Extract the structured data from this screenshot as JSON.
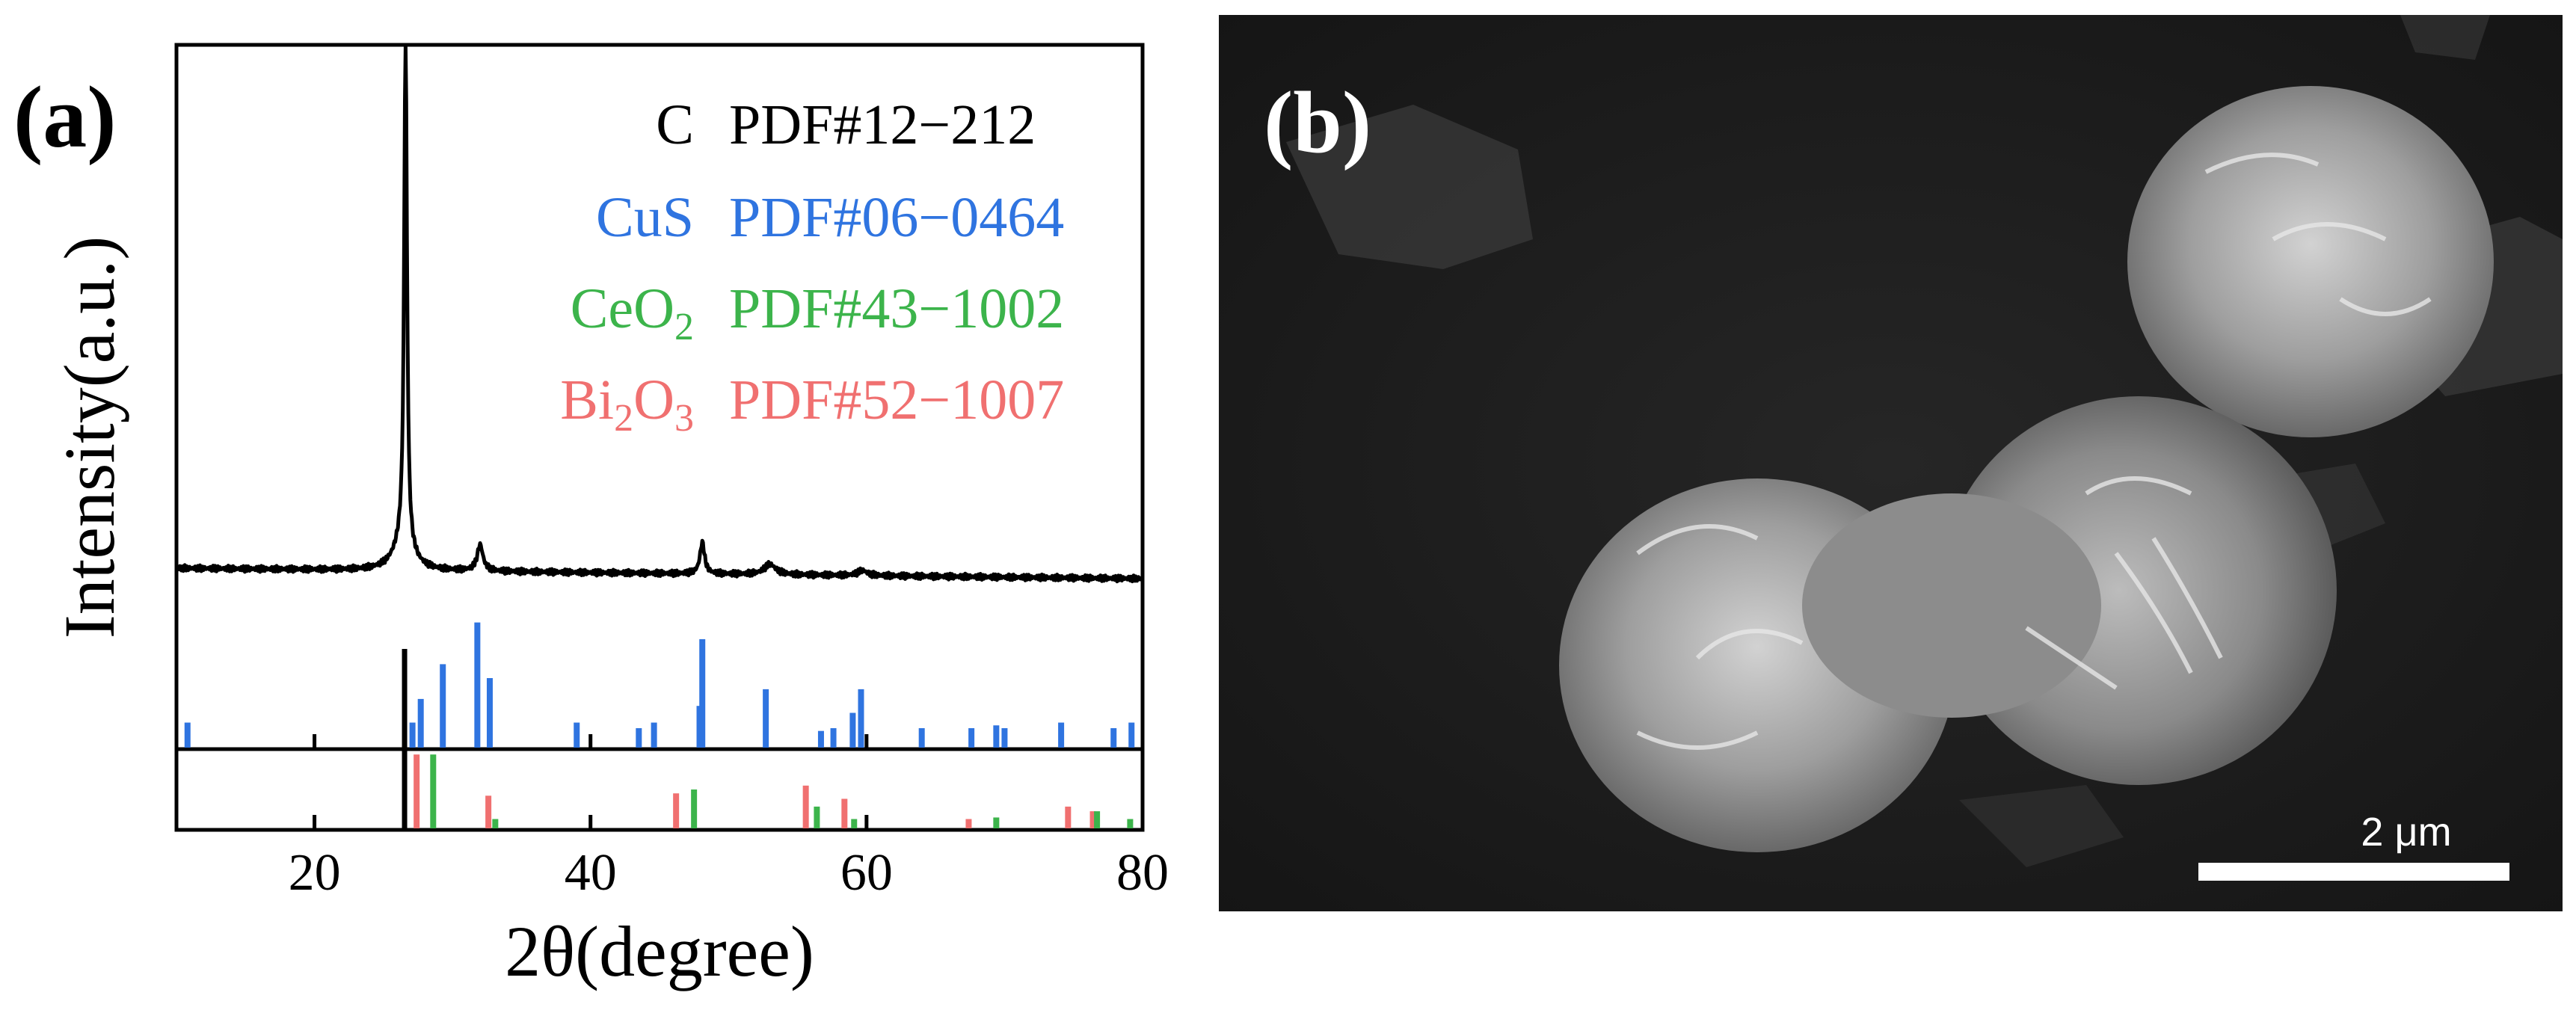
{
  "panel_a": {
    "label": "(a)",
    "chart_data": {
      "type": "line",
      "xlabel": "2θ(degree)",
      "ylabel": "Intensity(a.u.)",
      "xlim": [
        10,
        80
      ],
      "xticks": [
        20,
        40,
        60,
        80
      ],
      "grid": false,
      "legend_placement": "top-right",
      "legend": [
        {
          "name": "C",
          "pdf": "PDF#12−212",
          "color": "#000000"
        },
        {
          "name": "CuS",
          "pdf": "PDF#06−0464",
          "color": "#2f74e0"
        },
        {
          "name": "CeO",
          "sub1": "2",
          "name2": "",
          "sub2": "",
          "pdf": "PDF#43−1002",
          "color": "#3cb44b"
        },
        {
          "name": "Bi",
          "sub1": "2",
          "name2": "O",
          "sub2": "3",
          "pdf": "PDF#52−1007",
          "color": "#f07070"
        }
      ],
      "pattern": {
        "peaks": [
          {
            "x": 26.6,
            "h": 1.0,
            "w": 0.12
          },
          {
            "x": 26.4,
            "h": 0.05,
            "w": 0.8
          },
          {
            "x": 32.0,
            "h": 0.05,
            "w": 0.25
          },
          {
            "x": 48.1,
            "h": 0.06,
            "w": 0.2
          },
          {
            "x": 53.0,
            "h": 0.02,
            "w": 0.5
          },
          {
            "x": 59.7,
            "h": 0.01,
            "w": 0.4
          }
        ],
        "baseline_start": 0.0,
        "baseline_end": -0.02
      },
      "references": {
        "CuS": {
          "color": "#2f74e0",
          "x": [
            10.8,
            27.1,
            27.7,
            29.3,
            31.8,
            32.7,
            39.0,
            43.5,
            44.6,
            47.9,
            48.1,
            52.7,
            56.7,
            57.6,
            59.0,
            59.6,
            64.0,
            67.6,
            69.4,
            70.0,
            74.1,
            77.9,
            79.2
          ],
          "h": [
            0.18,
            0.18,
            0.35,
            0.6,
            0.9,
            0.5,
            0.18,
            0.14,
            0.18,
            0.3,
            0.78,
            0.42,
            0.12,
            0.14,
            0.25,
            0.42,
            0.14,
            0.14,
            0.16,
            0.14,
            0.18,
            0.14,
            0.18
          ]
        },
        "C": {
          "color": "#000000",
          "x": [
            26.5
          ],
          "h": [
            1.0
          ]
        },
        "CeO2": {
          "color": "#3cb44b",
          "x": [
            28.6,
            33.1,
            47.5,
            56.4,
            59.1,
            69.4,
            76.7,
            79.1
          ],
          "h": [
            0.95,
            0.12,
            0.5,
            0.28,
            0.12,
            0.14,
            0.22,
            0.12
          ]
        },
        "Bi2O3": {
          "color": "#f07070",
          "x": [
            27.4,
            32.6,
            46.2,
            55.6,
            58.4,
            67.4,
            74.6,
            76.4
          ],
          "h": [
            0.95,
            0.42,
            0.45,
            0.55,
            0.38,
            0.12,
            0.28,
            0.22
          ]
        }
      }
    }
  },
  "panel_b": {
    "label": "(b)",
    "scale_bar_label": "2 μm"
  }
}
